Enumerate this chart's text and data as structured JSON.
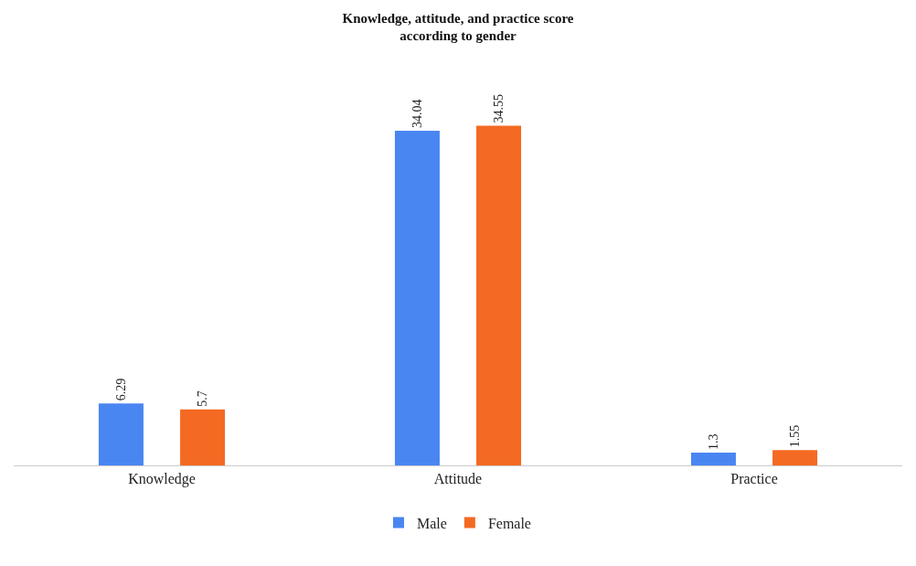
{
  "chart_data": {
    "type": "bar",
    "title": "Knowledge, attitude, and practice score\naccording to gender",
    "categories": [
      "Knowledge",
      "Attitude",
      "Practice"
    ],
    "series": [
      {
        "name": "Male",
        "color": "#4a86f2",
        "values": [
          6.29,
          34.04,
          1.3
        ]
      },
      {
        "name": "Female",
        "color": "#f46a22",
        "values": [
          5.7,
          34.55,
          1.55
        ]
      }
    ],
    "data_labels": true,
    "legend": "bottom",
    "grid": false
  }
}
